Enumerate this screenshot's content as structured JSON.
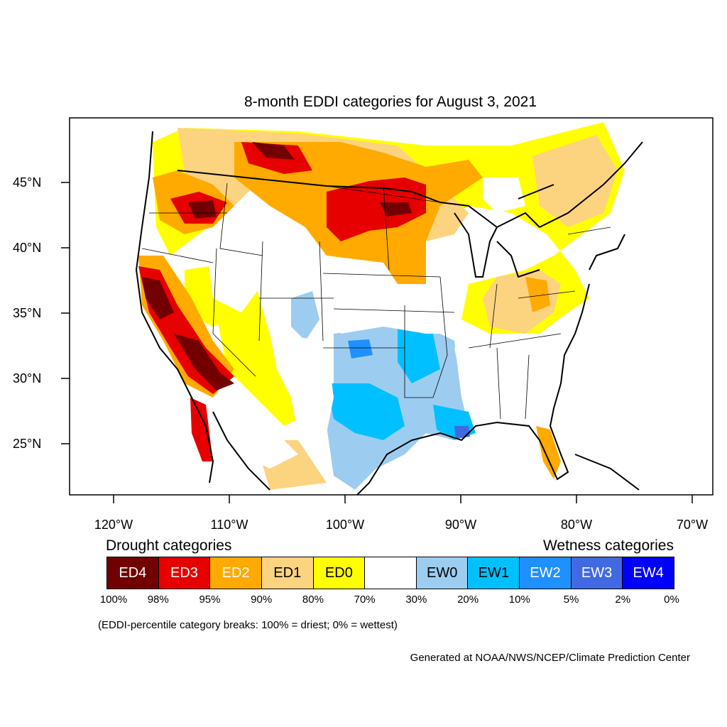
{
  "title": "8-month EDDI categories for August 3, 2021",
  "lat_labels": [
    "45°N",
    "40°N",
    "35°N",
    "30°N",
    "25°N"
  ],
  "lon_labels": [
    "120°W",
    "110°W",
    "100°W",
    "90°W",
    "80°W",
    "70°W"
  ],
  "legend": {
    "drought_heading": "Drought categories",
    "wetness_heading": "Wetness categories",
    "categories": [
      {
        "label": "ED4",
        "color": "#730000",
        "text_color": "#ffffff"
      },
      {
        "label": "ED3",
        "color": "#e60000",
        "text_color": "#ffffff"
      },
      {
        "label": "ED2",
        "color": "#ffaa00",
        "text_color": "#ffffff"
      },
      {
        "label": "ED1",
        "color": "#fcd37f",
        "text_color": "#000000"
      },
      {
        "label": "ED0",
        "color": "#ffff00",
        "text_color": "#000000"
      },
      {
        "label": "",
        "color": "#ffffff",
        "text_color": "#000000"
      },
      {
        "label": "EW0",
        "color": "#9ccdf0",
        "text_color": "#000000"
      },
      {
        "label": "EW1",
        "color": "#00c0ff",
        "text_color": "#000000"
      },
      {
        "label": "EW2",
        "color": "#1e90ff",
        "text_color": "#ffffff"
      },
      {
        "label": "EW3",
        "color": "#4169e1",
        "text_color": "#ffffff"
      },
      {
        "label": "EW4",
        "color": "#0000ff",
        "text_color": "#ffffff"
      }
    ],
    "percentiles": [
      "100%",
      "98%",
      "95%",
      "90%",
      "80%",
      "70%",
      "30%",
      "20%",
      "10%",
      "5%",
      "2%",
      "0%"
    ]
  },
  "note": "(EDDI-percentile category breaks: 100% = driest; 0% = wettest)",
  "credit": "Generated at NOAA/NWS/NCEP/Climate Prediction Center"
}
